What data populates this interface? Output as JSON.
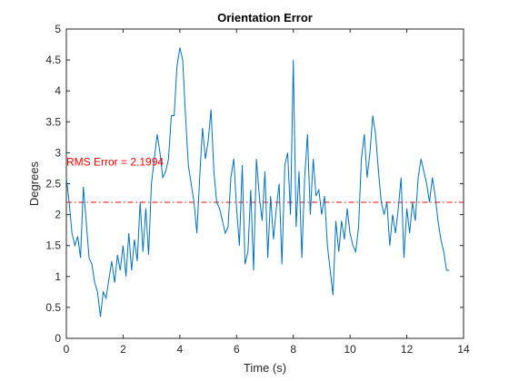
{
  "chart_data": {
    "type": "line",
    "title": "Orientation Error",
    "xlabel": "Time (s)",
    "ylabel": "Degrees",
    "xlim": [
      0,
      14
    ],
    "ylim": [
      0,
      5
    ],
    "xticks": [
      0,
      2,
      4,
      6,
      8,
      10,
      12,
      14
    ],
    "yticks": [
      0,
      0.5,
      1,
      1.5,
      2,
      2.5,
      3,
      3.5,
      4,
      4.5,
      5
    ],
    "xtick_labels": [
      "0",
      "2",
      "4",
      "6",
      "8",
      "10",
      "12",
      "14"
    ],
    "ytick_labels": [
      "0",
      "0.5",
      "1",
      "1.5",
      "2",
      "2.5",
      "3",
      "3.5",
      "4",
      "4.5",
      "5"
    ],
    "grid": false,
    "box": true,
    "series": [
      {
        "color": "#0072BD",
        "x": [
          0,
          0.1,
          0.2,
          0.3,
          0.4,
          0.5,
          0.6,
          0.7,
          0.8,
          0.9,
          1.0,
          1.1,
          1.2,
          1.3,
          1.4,
          1.5,
          1.6,
          1.7,
          1.8,
          1.9,
          2.0,
          2.1,
          2.2,
          2.3,
          2.4,
          2.5,
          2.6,
          2.7,
          2.8,
          2.9,
          3.0,
          3.1,
          3.2,
          3.3,
          3.4,
          3.5,
          3.6,
          3.7,
          3.8,
          3.9,
          4.0,
          4.1,
          4.2,
          4.3,
          4.4,
          4.5,
          4.6,
          4.7,
          4.8,
          4.9,
          5.0,
          5.1,
          5.2,
          5.3,
          5.4,
          5.5,
          5.6,
          5.7,
          5.8,
          5.9,
          6.0,
          6.1,
          6.2,
          6.3,
          6.4,
          6.5,
          6.6,
          6.7,
          6.8,
          6.9,
          7.0,
          7.1,
          7.2,
          7.3,
          7.4,
          7.5,
          7.6,
          7.7,
          7.8,
          7.9,
          8.0,
          8.1,
          8.2,
          8.3,
          8.4,
          8.5,
          8.6,
          8.7,
          8.8,
          8.9,
          9.0,
          9.1,
          9.2,
          9.3,
          9.4,
          9.5,
          9.6,
          9.7,
          9.8,
          9.9,
          10.0,
          10.1,
          10.2,
          10.3,
          10.4,
          10.5,
          10.6,
          10.7,
          10.8,
          10.9,
          11.0,
          11.1,
          11.2,
          11.3,
          11.4,
          11.5,
          11.6,
          11.7,
          11.8,
          11.9,
          12.0,
          12.1,
          12.2,
          12.3,
          12.4,
          12.5,
          12.6,
          12.7,
          12.8,
          12.9,
          13.0,
          13.1,
          13.2,
          13.3,
          13.4,
          13.5
        ],
        "y": [
          2.6,
          2.2,
          1.7,
          1.5,
          1.65,
          1.3,
          2.45,
          1.9,
          1.3,
          1.2,
          0.9,
          0.75,
          0.35,
          0.75,
          0.65,
          0.95,
          1.25,
          0.9,
          1.35,
          1.1,
          1.5,
          1.0,
          1.7,
          1.1,
          1.6,
          1.25,
          2.2,
          1.4,
          2.1,
          1.35,
          2.5,
          2.9,
          3.3,
          3.0,
          2.6,
          2.7,
          2.9,
          3.6,
          3.6,
          4.4,
          4.7,
          4.5,
          3.6,
          2.8,
          2.5,
          2.2,
          1.7,
          2.6,
          3.4,
          2.9,
          3.2,
          3.7,
          2.7,
          2.2,
          2.1,
          1.9,
          1.7,
          1.8,
          2.6,
          2.9,
          2.1,
          1.5,
          2.8,
          1.2,
          1.4,
          2.4,
          1.1,
          2.9,
          2.3,
          1.9,
          2.7,
          1.3,
          2.3,
          1.6,
          2.1,
          2.5,
          1.2,
          2.8,
          3.0,
          2.0,
          4.5,
          1.8,
          2.7,
          1.3,
          2.6,
          3.3,
          2.0,
          2.9,
          2.3,
          2.4,
          2.0,
          2.3,
          1.5,
          1.1,
          0.7,
          1.9,
          1.4,
          1.9,
          1.6,
          2.1,
          1.7,
          1.5,
          1.4,
          1.8,
          2.9,
          3.3,
          2.6,
          3.0,
          3.6,
          3.3,
          2.7,
          2.2,
          2.0,
          2.2,
          1.5,
          2.0,
          1.7,
          2.1,
          2.6,
          1.3,
          2.1,
          1.7,
          2.2,
          1.9,
          2.6,
          2.9,
          2.7,
          2.5,
          2.2,
          2.6,
          2.3,
          1.9,
          1.6,
          1.4,
          1.1,
          1.1
        ]
      }
    ],
    "reference_line": {
      "y": 2.1994,
      "color": "#FF0000",
      "style": "dash-dot"
    },
    "annotation": {
      "text": "RMS Error = 2.1994",
      "x": 0.0,
      "y": 2.85,
      "color": "#FF0000"
    }
  }
}
